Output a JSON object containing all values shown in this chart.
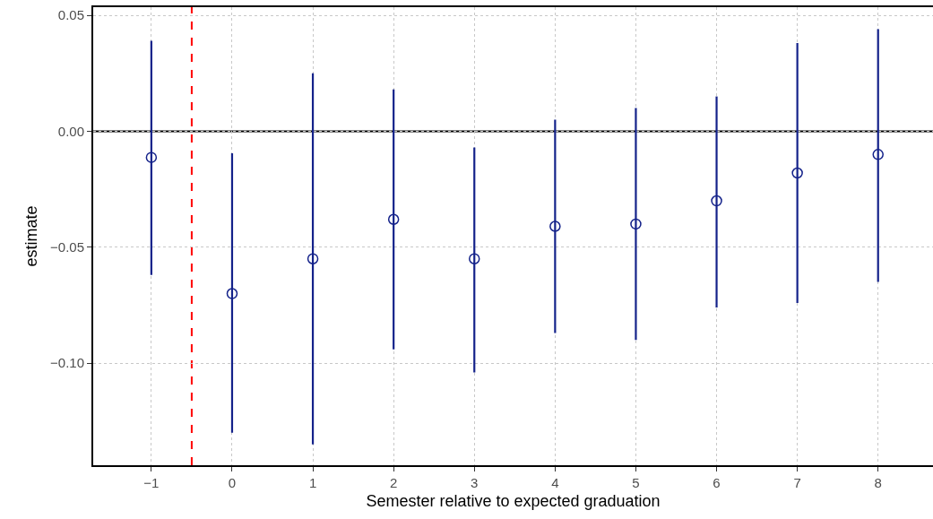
{
  "chart_data": {
    "type": "scatter",
    "xlabel": "Semester relative to expected graduation",
    "ylabel": "estimate",
    "x": [
      -1,
      0,
      1,
      2,
      3,
      4,
      5,
      6,
      7,
      8
    ],
    "values": [
      -0.0113,
      -0.07,
      -0.055,
      -0.038,
      -0.055,
      -0.041,
      -0.04,
      -0.03,
      -0.018,
      -0.01
    ],
    "errors": [
      [
        -0.062,
        0.039
      ],
      [
        -0.13,
        -0.0095
      ],
      [
        -0.135,
        0.025
      ],
      [
        -0.094,
        0.018
      ],
      [
        -0.104,
        -0.007
      ],
      [
        -0.087,
        0.005
      ],
      [
        -0.09,
        0.01
      ],
      [
        -0.076,
        0.015
      ],
      [
        -0.074,
        0.038
      ],
      [
        -0.065,
        0.044
      ]
    ],
    "color": "#14228a",
    "marker": "circle",
    "xlim": [
      -1.72,
      8.68
    ],
    "ylim": [
      -0.144,
      0.0535
    ],
    "xticks": [
      {
        "value": -1,
        "label": "−1"
      },
      0,
      1,
      2,
      3,
      4,
      5,
      6,
      7,
      8
    ],
    "yticks": [
      {
        "value": -0.1,
        "label": "−0.10"
      },
      {
        "value": -0.05,
        "label": "−0.05"
      },
      {
        "value": 0,
        "label": "0.00"
      },
      0.05
    ],
    "grid": true,
    "ref_lines": [
      {
        "axis": "y",
        "value": 0,
        "color": "#000000",
        "line_style": "solid"
      },
      {
        "axis": "x",
        "value": -0.5,
        "color": "#ff0000",
        "line_style": "dashed"
      }
    ]
  }
}
